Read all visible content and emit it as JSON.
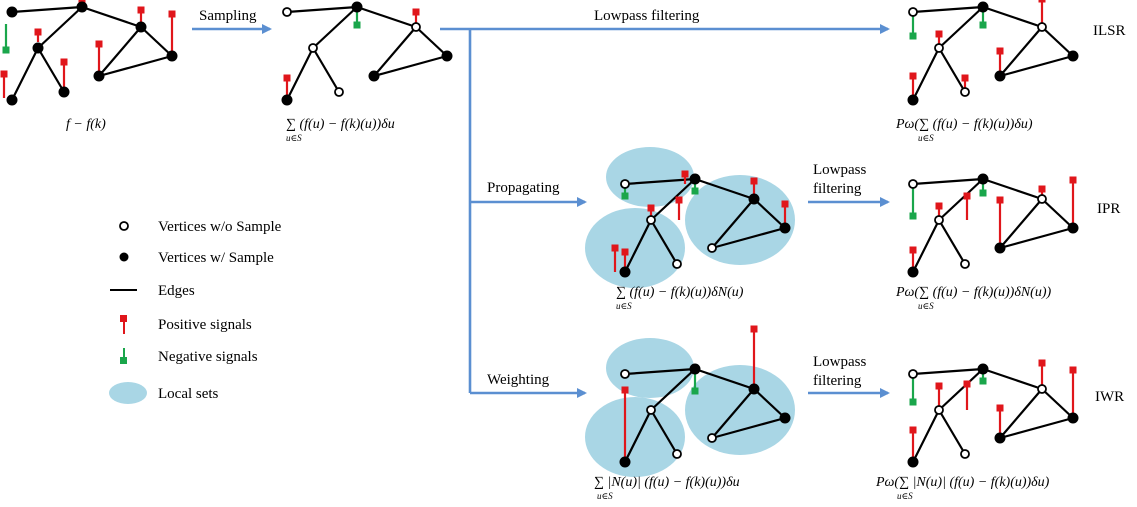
{
  "colors": {
    "edge": "#000000",
    "positive_signal": "#e0161b",
    "negative_signal": "#1aa64b",
    "local_set": "#a9d6e5",
    "arrow": "#5b8fd1"
  },
  "labels": {
    "sampling": "Sampling",
    "lowpass_filtering": "Lowpass filtering",
    "propagating": "Propagating",
    "weighting": "Weighting",
    "lowpass_line1": "Lowpass",
    "lowpass_line2": "filtering"
  },
  "methods": {
    "ilsr": "ILSR",
    "ipr": "IPR",
    "iwr": "IWR"
  },
  "formulas": {
    "residual": "f − f(k)",
    "sampled_sum": "∑ (f(u) − f(k)(u))δu",
    "sum_sub": "u∈S",
    "ilsr": "Pω(∑ (f(u) − f(k)(u))δu)",
    "propagated_sum": "∑ (f(u) − f(k)(u))δN(u)",
    "ipr": "Pω(∑ (f(u) − f(k)(u))δN(u))",
    "weighted_sum": "∑ |N(u)| (f(u) − f(k)(u))δu",
    "iwr": "Pω(∑ |N(u)| (f(u) − f(k)(u))δu)"
  },
  "legend": [
    {
      "icon": "open-vertex-icon",
      "label": "Vertices w/o Sample"
    },
    {
      "icon": "filled-vertex-icon",
      "label": "Vertices w/ Sample"
    },
    {
      "icon": "edge-line-icon",
      "label": "Edges"
    },
    {
      "icon": "positive-signal-icon",
      "label": "Positive signals"
    },
    {
      "icon": "negative-signal-icon",
      "label": "Negative signals"
    },
    {
      "icon": "local-set-icon",
      "label": "Local sets"
    }
  ]
}
